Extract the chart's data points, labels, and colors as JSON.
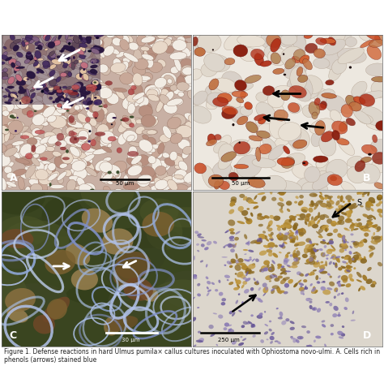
{
  "figure_width": 4.74,
  "figure_height": 4.67,
  "dpi": 100,
  "bg_color": "#ffffff",
  "scale_bars": {
    "A": "50 μm",
    "B": "50 μm",
    "C": "30 μm",
    "D": "250 μm"
  },
  "caption": "Figure 1. Defense reactions in hard Ulmus pumila× callus cultures inoculated with Ophiostoma novo-ulmi. A. Cells rich in phenols (arrows) stained blue",
  "caption_fontsize": 5.5,
  "caption_color": "#222222",
  "panel_label_fontsize": 9,
  "panel_A_bg": "#c8b8a8",
  "panel_B_bg": "#e8e0d4",
  "panel_C_bg": "#3a4520",
  "panel_D_bg": "#ddd8cc"
}
